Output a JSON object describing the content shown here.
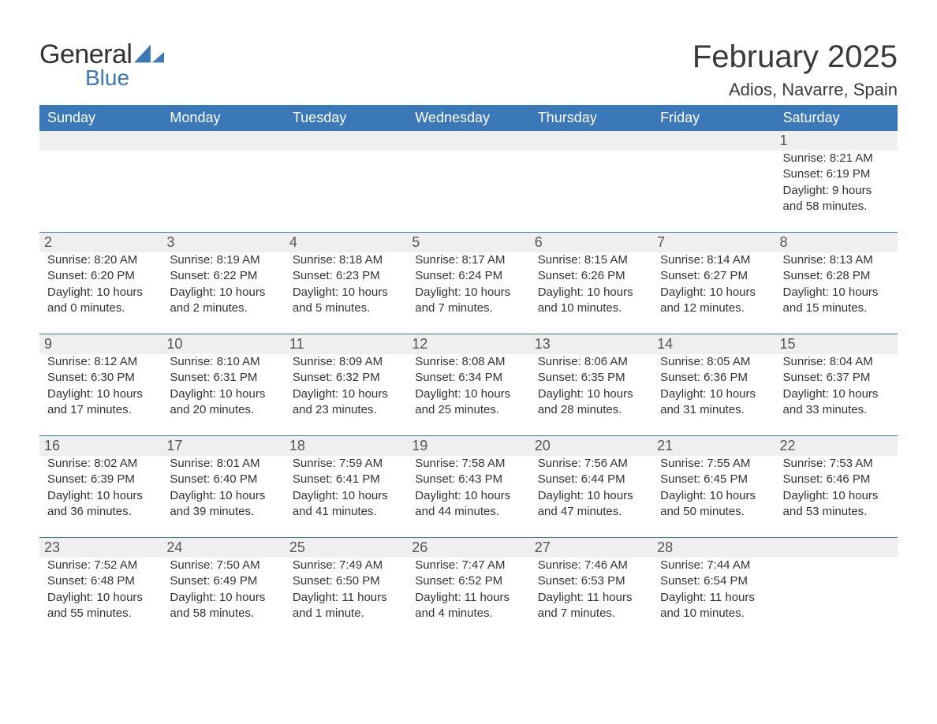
{
  "logo": {
    "general": "General",
    "blue": "Blue",
    "sail_color": "#3b78b8"
  },
  "title": "February 2025",
  "location": "Adios, Navarre, Spain",
  "colors": {
    "header_bg": "#3b78b8",
    "header_text": "#ffffff",
    "day_stripe": "#efefef",
    "body_text": "#333333",
    "rule": "#3b78b8",
    "background": "#ffffff"
  },
  "fonts": {
    "title_size": 40,
    "location_size": 22,
    "weekday_size": 18,
    "daynum_size": 18,
    "body_size": 15
  },
  "weekdays": [
    "Sunday",
    "Monday",
    "Tuesday",
    "Wednesday",
    "Thursday",
    "Friday",
    "Saturday"
  ],
  "weeks": [
    [
      null,
      null,
      null,
      null,
      null,
      null,
      {
        "n": "1",
        "sunrise": "8:21 AM",
        "sunset": "6:19 PM",
        "daylight": "9 hours and 58 minutes."
      }
    ],
    [
      {
        "n": "2",
        "sunrise": "8:20 AM",
        "sunset": "6:20 PM",
        "daylight": "10 hours and 0 minutes."
      },
      {
        "n": "3",
        "sunrise": "8:19 AM",
        "sunset": "6:22 PM",
        "daylight": "10 hours and 2 minutes."
      },
      {
        "n": "4",
        "sunrise": "8:18 AM",
        "sunset": "6:23 PM",
        "daylight": "10 hours and 5 minutes."
      },
      {
        "n": "5",
        "sunrise": "8:17 AM",
        "sunset": "6:24 PM",
        "daylight": "10 hours and 7 minutes."
      },
      {
        "n": "6",
        "sunrise": "8:15 AM",
        "sunset": "6:26 PM",
        "daylight": "10 hours and 10 minutes."
      },
      {
        "n": "7",
        "sunrise": "8:14 AM",
        "sunset": "6:27 PM",
        "daylight": "10 hours and 12 minutes."
      },
      {
        "n": "8",
        "sunrise": "8:13 AM",
        "sunset": "6:28 PM",
        "daylight": "10 hours and 15 minutes."
      }
    ],
    [
      {
        "n": "9",
        "sunrise": "8:12 AM",
        "sunset": "6:30 PM",
        "daylight": "10 hours and 17 minutes."
      },
      {
        "n": "10",
        "sunrise": "8:10 AM",
        "sunset": "6:31 PM",
        "daylight": "10 hours and 20 minutes."
      },
      {
        "n": "11",
        "sunrise": "8:09 AM",
        "sunset": "6:32 PM",
        "daylight": "10 hours and 23 minutes."
      },
      {
        "n": "12",
        "sunrise": "8:08 AM",
        "sunset": "6:34 PM",
        "daylight": "10 hours and 25 minutes."
      },
      {
        "n": "13",
        "sunrise": "8:06 AM",
        "sunset": "6:35 PM",
        "daylight": "10 hours and 28 minutes."
      },
      {
        "n": "14",
        "sunrise": "8:05 AM",
        "sunset": "6:36 PM",
        "daylight": "10 hours and 31 minutes."
      },
      {
        "n": "15",
        "sunrise": "8:04 AM",
        "sunset": "6:37 PM",
        "daylight": "10 hours and 33 minutes."
      }
    ],
    [
      {
        "n": "16",
        "sunrise": "8:02 AM",
        "sunset": "6:39 PM",
        "daylight": "10 hours and 36 minutes."
      },
      {
        "n": "17",
        "sunrise": "8:01 AM",
        "sunset": "6:40 PM",
        "daylight": "10 hours and 39 minutes."
      },
      {
        "n": "18",
        "sunrise": "7:59 AM",
        "sunset": "6:41 PM",
        "daylight": "10 hours and 41 minutes."
      },
      {
        "n": "19",
        "sunrise": "7:58 AM",
        "sunset": "6:43 PM",
        "daylight": "10 hours and 44 minutes."
      },
      {
        "n": "20",
        "sunrise": "7:56 AM",
        "sunset": "6:44 PM",
        "daylight": "10 hours and 47 minutes."
      },
      {
        "n": "21",
        "sunrise": "7:55 AM",
        "sunset": "6:45 PM",
        "daylight": "10 hours and 50 minutes."
      },
      {
        "n": "22",
        "sunrise": "7:53 AM",
        "sunset": "6:46 PM",
        "daylight": "10 hours and 53 minutes."
      }
    ],
    [
      {
        "n": "23",
        "sunrise": "7:52 AM",
        "sunset": "6:48 PM",
        "daylight": "10 hours and 55 minutes."
      },
      {
        "n": "24",
        "sunrise": "7:50 AM",
        "sunset": "6:49 PM",
        "daylight": "10 hours and 58 minutes."
      },
      {
        "n": "25",
        "sunrise": "7:49 AM",
        "sunset": "6:50 PM",
        "daylight": "11 hours and 1 minute."
      },
      {
        "n": "26",
        "sunrise": "7:47 AM",
        "sunset": "6:52 PM",
        "daylight": "11 hours and 4 minutes."
      },
      {
        "n": "27",
        "sunrise": "7:46 AM",
        "sunset": "6:53 PM",
        "daylight": "11 hours and 7 minutes."
      },
      {
        "n": "28",
        "sunrise": "7:44 AM",
        "sunset": "6:54 PM",
        "daylight": "11 hours and 10 minutes."
      },
      null
    ]
  ],
  "labels": {
    "sunrise": "Sunrise:",
    "sunset": "Sunset:",
    "daylight": "Daylight:"
  }
}
